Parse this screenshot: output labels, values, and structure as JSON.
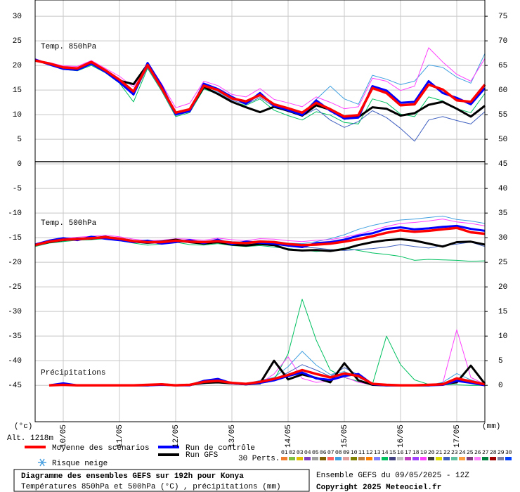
{
  "chart_data": {
    "type": "line",
    "title": "Diagramme des ensembles GEFS sur 192h pour Konya",
    "subtitle": "Températures 850hPa et 500hPa (°C) , précipitations (mm)",
    "run_info": "Ensemble GEFS du 09/05/2025 - 12Z",
    "copyright": "Copyright 2025 Meteociel.fr",
    "panel_labels": [
      "Temp. 850hPa",
      "Temp. 500hPa",
      "Précipitations"
    ],
    "y_label": "(°c)",
    "y2_label": "(mm)",
    "altitude": "Alt. 1218m",
    "snow_risk": "Risque neige",
    "perturbation_count": "30 Perts.",
    "grid": true,
    "xlim": [
      0,
      192
    ],
    "xticks": [
      {
        "value": 12,
        "label": "10/05"
      },
      {
        "value": 36,
        "label": "11/05"
      },
      {
        "value": 60,
        "label": "12/05"
      },
      {
        "value": 84,
        "label": "13/05"
      },
      {
        "value": 108,
        "label": "14/05"
      },
      {
        "value": 132,
        "label": "15/05"
      },
      {
        "value": 156,
        "label": "16/05"
      },
      {
        "value": 180,
        "label": "17/05"
      }
    ],
    "ylim": [
      -52.4,
      33.3
    ],
    "yticks": [
      30,
      25,
      20,
      15,
      10,
      5,
      0,
      -5,
      -10,
      -15,
      -20,
      -25,
      -30,
      -35,
      -40,
      -45
    ],
    "y2lim": [
      -7.4,
      78.3
    ],
    "y2ticks": [
      75,
      70,
      65,
      60,
      55,
      50,
      45,
      40,
      35,
      30,
      25,
      20,
      15,
      10,
      5,
      0
    ],
    "x": [
      0,
      6,
      12,
      18,
      24,
      30,
      36,
      42,
      48,
      54,
      60,
      66,
      72,
      78,
      84,
      90,
      96,
      102,
      108,
      114,
      120,
      126,
      132,
      138,
      144,
      150,
      156,
      162,
      168,
      174,
      180,
      186,
      192
    ],
    "x_precip": [
      6,
      12,
      18,
      24,
      30,
      36,
      42,
      48,
      54,
      60,
      66,
      72,
      78,
      84,
      90,
      96,
      102,
      108,
      114,
      120,
      126,
      132,
      138,
      144,
      150,
      156,
      162,
      168,
      174,
      180,
      186,
      192
    ],
    "series": [
      {
        "name": "Moyenne des scénarios",
        "color": "#ff0000",
        "t850": [
          21,
          20.4,
          19.6,
          19.4,
          20.7,
          19,
          17.1,
          14.7,
          20.1,
          15.4,
          10.4,
          11.1,
          15.9,
          15,
          13.3,
          12.7,
          14,
          12.1,
          11.3,
          10.4,
          12.4,
          11.1,
          9.6,
          9.9,
          15.4,
          14.4,
          11.9,
          12.1,
          16.1,
          15.1,
          12.9,
          12.6,
          16.1
        ],
        "t500": [
          -16.5,
          -15.8,
          -15.4,
          -15.3,
          -15.1,
          -14.9,
          -15.2,
          -15.7,
          -15.9,
          -15.9,
          -15.6,
          -15.8,
          -15.9,
          -15.7,
          -16,
          -16.1,
          -15.8,
          -15.9,
          -16.3,
          -16.5,
          -16.4,
          -16.2,
          -15.8,
          -15.3,
          -14.7,
          -14,
          -13.5,
          -13.8,
          -13.6,
          -13.3,
          -13,
          -13.9,
          -14.2
        ],
        "precip": [
          0,
          0.1,
          0,
          0,
          0,
          0,
          0,
          0.1,
          0.2,
          0,
          0.1,
          0.7,
          0.9,
          0.5,
          0.3,
          0.7,
          1.3,
          2.1,
          3.1,
          2.3,
          1.6,
          2.4,
          1.9,
          0.3,
          0.1,
          0,
          0,
          0.1,
          0.2,
          1.4,
          0.8,
          0.2
        ]
      },
      {
        "name": "Run de contrôle",
        "color": "#0000ff",
        "t850": [
          21.2,
          20.2,
          19.3,
          19.1,
          20.4,
          18.7,
          16.6,
          14.1,
          20.5,
          15.9,
          10.1,
          10.7,
          16.3,
          15.2,
          13.6,
          12.2,
          14.4,
          11.8,
          10.9,
          9.9,
          12.9,
          10.8,
          9.2,
          9.4,
          15.8,
          14.9,
          12.4,
          12.6,
          16.8,
          14.4,
          13.4,
          12.1,
          15.4
        ],
        "t500": [
          -16.4,
          -15.6,
          -15.1,
          -15.5,
          -14.8,
          -15.2,
          -15.5,
          -15.9,
          -15.6,
          -16.2,
          -15.9,
          -15.5,
          -16.1,
          -15.4,
          -16.3,
          -15.8,
          -16,
          -16.2,
          -16.6,
          -16.9,
          -16.1,
          -15.9,
          -15.4,
          -14.6,
          -14.1,
          -13.2,
          -12.9,
          -13.3,
          -13.1,
          -12.8,
          -12.6,
          -13.2,
          -13.6
        ],
        "precip": [
          0,
          0.4,
          0,
          0,
          0,
          0,
          0,
          0,
          0.1,
          0,
          0,
          0.9,
          1.3,
          0.4,
          0.2,
          0.5,
          1,
          1.9,
          2.6,
          1.4,
          1.1,
          1.9,
          2.3,
          0.2,
          0,
          0,
          0,
          0,
          0.1,
          0.9,
          0.5,
          0
        ]
      },
      {
        "name": "Run GFS",
        "color": "#000000",
        "t850": [
          21.1,
          20.3,
          19.5,
          19.2,
          20.5,
          18.9,
          16.9,
          16.2,
          20.2,
          15.6,
          10.2,
          11,
          15.6,
          14.2,
          12.6,
          11.5,
          10.5,
          11.6,
          10.8,
          9.8,
          11.9,
          11,
          9.2,
          9.5,
          11.5,
          11.2,
          9.8,
          10.3,
          12,
          12.6,
          11.2,
          9.6,
          11.8
        ],
        "t500": [
          -16.5,
          -15.9,
          -15.5,
          -15.2,
          -15.2,
          -14.8,
          -15.4,
          -15.8,
          -16,
          -15.8,
          -15.4,
          -15.9,
          -16.2,
          -15.9,
          -16.4,
          -16.6,
          -16.3,
          -16.5,
          -17.4,
          -17.6,
          -17.5,
          -17.7,
          -17.3,
          -16.5,
          -15.9,
          -15.5,
          -15.3,
          -15.6,
          -16.2,
          -16.8,
          -15.9,
          -15.8,
          -16.4
        ],
        "precip": [
          0,
          0.2,
          0,
          0,
          0,
          0,
          0,
          0,
          0.2,
          0,
          0.1,
          0.5,
          0.6,
          0.4,
          0.2,
          0.4,
          5,
          1.2,
          2.2,
          1.5,
          0.6,
          4.5,
          1,
          0.1,
          0,
          0,
          0,
          0,
          0.3,
          0.6,
          4,
          0.3
        ]
      }
    ],
    "perturbations": [
      {
        "label": "01",
        "color": "#f08030"
      },
      {
        "label": "02",
        "color": "#80c040"
      },
      {
        "label": "03",
        "color": "#e0c000"
      },
      {
        "label": "04",
        "color": "#8040c0"
      },
      {
        "label": "05",
        "color": "#a0a0a0"
      },
      {
        "label": "06",
        "color": "#806000"
      },
      {
        "label": "07",
        "color": "#ff6060"
      },
      {
        "label": "08",
        "color": "#40a0e0",
        "t850": [
          20.9,
          20.3,
          19.4,
          19.2,
          20.3,
          18.6,
          16.8,
          14.2,
          19.8,
          15.1,
          10.1,
          10.9,
          15.5,
          14.6,
          13.1,
          12.4,
          13.8,
          11.9,
          11,
          10.2,
          13.1,
          15.8,
          13.2,
          12.1,
          18,
          17.2,
          16.1,
          16.8,
          20.1,
          19.6,
          17.6,
          16.4,
          22.4
        ],
        "t500": [
          -16.4,
          -15.6,
          -15.2,
          -15.1,
          -14.9,
          -14.7,
          -15,
          -15.5,
          -15.7,
          -15.6,
          -15.4,
          -15.6,
          -15.7,
          -15.5,
          -15.8,
          -15.9,
          -15.6,
          -15.7,
          -16.1,
          -16.2,
          -15.8,
          -15.2,
          -14.4,
          -13.3,
          -12.5,
          -11.9,
          -11.4,
          -11.2,
          -10.9,
          -10.6,
          -11.3,
          -11.6,
          -12.1
        ],
        "precip": [
          0,
          0,
          0,
          0,
          0,
          0,
          0,
          0,
          0.2,
          0,
          0.1,
          0.6,
          1.1,
          0.6,
          0.3,
          1,
          1.6,
          3.8,
          6.9,
          4.1,
          2.2,
          2.8,
          1.6,
          0.2,
          0,
          0,
          0,
          0,
          0.6,
          2.4,
          1.1,
          0.3
        ]
      },
      {
        "label": "09",
        "color": "#e0a0a0"
      },
      {
        "label": "10",
        "color": "#808000"
      },
      {
        "label": "11",
        "color": "#c08040"
      },
      {
        "label": "12",
        "color": "#ff8000"
      },
      {
        "label": "13",
        "color": "#8080ff"
      },
      {
        "label": "14",
        "color": "#00c060",
        "t850": [
          21,
          20.1,
          19.2,
          18.9,
          20,
          18.5,
          16.4,
          12.6,
          19.4,
          14.8,
          9.6,
          10.4,
          15.2,
          14.2,
          12.5,
          11.9,
          13.2,
          10.9,
          9.8,
          8.9,
          10.6,
          9.9,
          8.4,
          8.1,
          13.2,
          12.4,
          10.1,
          9.6,
          13.6,
          12.8,
          11.2,
          10.4,
          14.3
        ],
        "t500": [
          -16.8,
          -16.1,
          -15.8,
          -15.5,
          -15.4,
          -15.2,
          -15.6,
          -16.1,
          -16.5,
          -16.3,
          -15.9,
          -16.4,
          -16.5,
          -16.2,
          -16.6,
          -16.8,
          -16.6,
          -16.9,
          -17.2,
          -17.5,
          -17.8,
          -17.6,
          -17.1,
          -17.6,
          -18.1,
          -18.4,
          -18.8,
          -19.6,
          -19.4,
          -19.5,
          -19.6,
          -19.8,
          -19.7
        ],
        "precip": [
          0,
          0,
          0,
          0,
          0,
          0,
          0,
          0,
          0.3,
          0,
          0.2,
          1,
          0.6,
          0.3,
          0.2,
          0.6,
          1.1,
          6.4,
          17.5,
          9.2,
          3.1,
          1.6,
          0.8,
          0.2,
          10,
          4.2,
          1.1,
          0.2,
          0.1,
          0.1,
          0,
          0
        ]
      },
      {
        "label": "15",
        "color": "#404080"
      },
      {
        "label": "16",
        "color": "#c0c0c0"
      },
      {
        "label": "17",
        "color": "#c040c0"
      },
      {
        "label": "18",
        "color": "#a040ff"
      },
      {
        "label": "19",
        "color": "#ff40ff",
        "t850": [
          21.1,
          20.6,
          19.9,
          19.8,
          21,
          19.4,
          17.8,
          15.6,
          20.6,
          16.3,
          11.4,
          12.3,
          16.8,
          15.9,
          14.1,
          13.6,
          15.3,
          13.1,
          12.4,
          11.6,
          13.6,
          12.5,
          11.2,
          11.6,
          17.4,
          16.8,
          14.9,
          15.8,
          23.6,
          20.7,
          18.2,
          16.8,
          21.4
        ],
        "t500": [
          -16.2,
          -15.5,
          -15.1,
          -14.9,
          -14.7,
          -14.5,
          -14.8,
          -15.3,
          -15.6,
          -15.5,
          -15.2,
          -15.3,
          -15.5,
          -15.1,
          -15.4,
          -15.6,
          -15.2,
          -15.3,
          -15.6,
          -15.8,
          -15.5,
          -15.4,
          -14.9,
          -14.3,
          -13.5,
          -12.7,
          -12.1,
          -11.9,
          -11.6,
          -11.2,
          -11.8,
          -12.1,
          -12.6
        ],
        "precip": [
          0,
          0,
          0,
          0,
          0,
          0,
          0,
          0,
          0.1,
          0,
          0,
          0.4,
          0.7,
          0.3,
          0.1,
          0.4,
          2.3,
          5.8,
          1.4,
          0.6,
          0.9,
          1.7,
          0.6,
          0.1,
          0,
          0,
          0,
          0,
          0.4,
          11.3,
          1.6,
          0.2
        ]
      },
      {
        "label": "20",
        "color": "#404040"
      },
      {
        "label": "21",
        "color": "#e0e000"
      },
      {
        "label": "22",
        "color": "#4060c0",
        "t850": [
          21,
          20.2,
          19.3,
          19,
          20.2,
          18.7,
          16.7,
          13.9,
          19.6,
          15,
          9.8,
          10.6,
          15.4,
          14.4,
          12.9,
          12.1,
          13.5,
          11.6,
          10.6,
          9.7,
          11.2,
          8.9,
          7.4,
          8.6,
          10.8,
          9.4,
          7.2,
          4.6,
          8.9,
          9.6,
          8.8,
          8.1,
          10.6
        ],
        "t500": [
          -16.6,
          -15.9,
          -15.6,
          -15.4,
          -15.3,
          -15.1,
          -15.4,
          -15.9,
          -16.2,
          -16,
          -15.8,
          -16,
          -16.1,
          -15.9,
          -16.2,
          -16.4,
          -16.1,
          -16.3,
          -16.7,
          -16.9,
          -17.1,
          -17.4,
          -17.6,
          -17.4,
          -17.2,
          -16.9,
          -16.4,
          -16.8,
          -17.1,
          -16.6,
          -16.3,
          -15.9,
          -16.8
        ],
        "precip": [
          0,
          0,
          0,
          0,
          0,
          0,
          0,
          0,
          0.1,
          0,
          0,
          0.3,
          0.8,
          0.5,
          0.2,
          0.6,
          1.2,
          2.6,
          4.2,
          3.1,
          1.8,
          3.6,
          2.1,
          0.1,
          0,
          0,
          0,
          0,
          0.2,
          0.8,
          0.4,
          0.1
        ]
      },
      {
        "label": "23",
        "color": "#60c0a0"
      },
      {
        "label": "24",
        "color": "#ffa040"
      },
      {
        "label": "25",
        "color": "#804080"
      },
      {
        "label": "26",
        "color": "#ff80ff"
      },
      {
        "label": "27",
        "color": "#008040"
      },
      {
        "label": "28",
        "color": "#a00000"
      },
      {
        "label": "29",
        "color": "#8080a0"
      },
      {
        "label": "30",
        "color": "#0040ff"
      }
    ]
  }
}
